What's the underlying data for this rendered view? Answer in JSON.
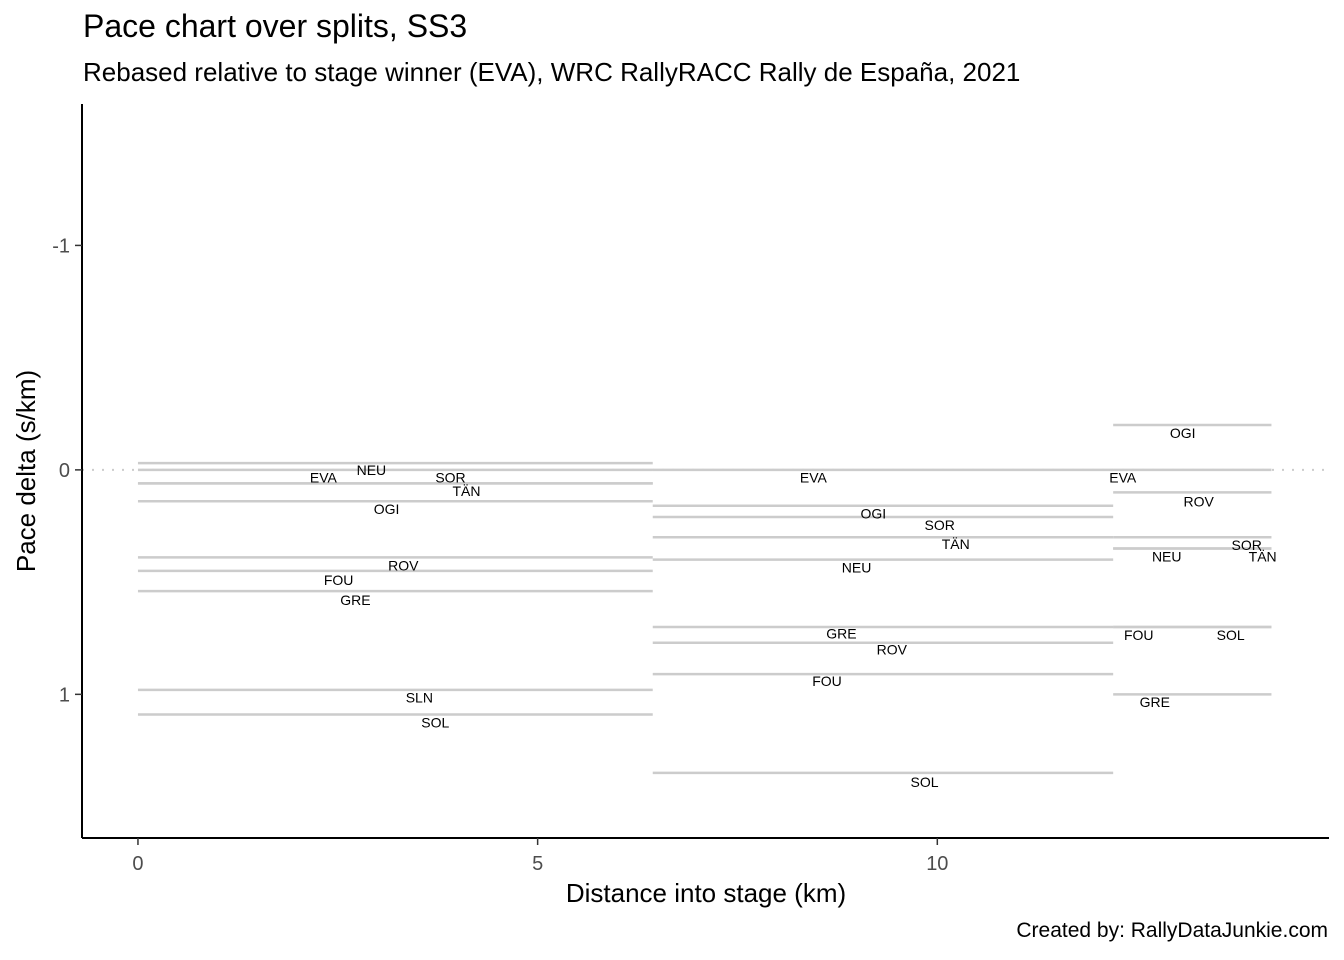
{
  "chart_data": {
    "type": "line",
    "title": "Pace chart over splits, SS3",
    "subtitle": "Rebased relative to stage winner (EVA), WRC RallyRACC Rally de España, 2021",
    "caption": "Created by: RallyDataJunkie.com",
    "xlabel": "Distance into stage (km)",
    "ylabel": "Pace delta (s/km)",
    "xlim": [
      -0.7,
      14.9
    ],
    "ylim": [
      1.64,
      -1.63
    ],
    "y_reversed": true,
    "x_ticks": [
      0,
      5,
      10
    ],
    "x_tick_labels": [
      "0",
      "5",
      "10"
    ],
    "y_ticks": [
      -1,
      0,
      1
    ],
    "y_tick_labels": [
      "-1",
      "0",
      "1"
    ],
    "grid": false,
    "zero_reference_line": true,
    "segments": [
      {
        "x_start": 0.0,
        "x_end": 6.44,
        "entries": [
          {
            "driver": "NEU",
            "pace": -0.03,
            "label_x": 2.92,
            "label_pace": 0.0
          },
          {
            "driver": "EVA",
            "pace": 0.0,
            "label_x": 2.32,
            "label_pace": 0.035
          },
          {
            "driver": "SOR",
            "pace": 0.06,
            "label_x": 3.91,
            "label_pace": 0.035
          },
          {
            "driver": "TÄN",
            "pace": 0.06,
            "label_x": 4.11,
            "label_pace": 0.095
          },
          {
            "driver": "OGI",
            "pace": 0.14,
            "label_x": 3.11,
            "label_pace": 0.175
          },
          {
            "driver": "ROV",
            "pace": 0.39,
            "label_x": 3.32,
            "label_pace": 0.425
          },
          {
            "driver": "FOU",
            "pace": 0.45,
            "label_x": 2.51,
            "label_pace": 0.49
          },
          {
            "driver": "GRE",
            "pace": 0.54,
            "label_x": 2.72,
            "label_pace": 0.58
          },
          {
            "driver": "SLN",
            "pace": 0.98,
            "label_x": 3.52,
            "label_pace": 1.015
          },
          {
            "driver": "SOL",
            "pace": 1.09,
            "label_x": 3.72,
            "label_pace": 1.125
          }
        ]
      },
      {
        "x_start": 6.44,
        "x_end": 12.2,
        "entries": [
          {
            "driver": "EVA",
            "pace": 0.0,
            "label_x": 8.45,
            "label_pace": 0.035
          },
          {
            "driver": "OGI",
            "pace": 0.16,
            "label_x": 9.2,
            "label_pace": 0.195
          },
          {
            "driver": "SOR",
            "pace": 0.21,
            "label_x": 10.03,
            "label_pace": 0.245
          },
          {
            "driver": "TÄN",
            "pace": 0.3,
            "label_x": 10.23,
            "label_pace": 0.33
          },
          {
            "driver": "NEU",
            "pace": 0.4,
            "label_x": 8.99,
            "label_pace": 0.435
          },
          {
            "driver": "GRE",
            "pace": 0.7,
            "label_x": 8.8,
            "label_pace": 0.73
          },
          {
            "driver": "ROV",
            "pace": 0.77,
            "label_x": 9.43,
            "label_pace": 0.8
          },
          {
            "driver": "FOU",
            "pace": 0.91,
            "label_x": 8.62,
            "label_pace": 0.94
          },
          {
            "driver": "SOL",
            "pace": 1.35,
            "label_x": 9.84,
            "label_pace": 1.39
          }
        ]
      },
      {
        "x_start": 12.2,
        "x_end": 14.18,
        "entries": [
          {
            "driver": "OGI",
            "pace": -0.2,
            "label_x": 13.07,
            "label_pace": -0.165
          },
          {
            "driver": "EVA",
            "pace": 0.0,
            "label_x": 12.32,
            "label_pace": 0.035
          },
          {
            "driver": "ROV",
            "pace": 0.1,
            "label_x": 13.27,
            "label_pace": 0.14
          },
          {
            "driver": "SOR",
            "pace": 0.3,
            "label_x": 13.87,
            "label_pace": 0.335
          },
          {
            "driver": "NEU",
            "pace": 0.35,
            "label_x": 12.87,
            "label_pace": 0.385
          },
          {
            "driver": "TÄN",
            "pace": 0.35,
            "label_x": 14.07,
            "label_pace": 0.385
          },
          {
            "driver": "FOU",
            "pace": 0.7,
            "label_x": 12.52,
            "label_pace": 0.735
          },
          {
            "driver": "SOL",
            "pace": 0.7,
            "label_x": 13.67,
            "label_pace": 0.735
          },
          {
            "driver": "GRE",
            "pace": 1.0,
            "label_x": 12.72,
            "label_pace": 1.035
          }
        ]
      }
    ]
  }
}
